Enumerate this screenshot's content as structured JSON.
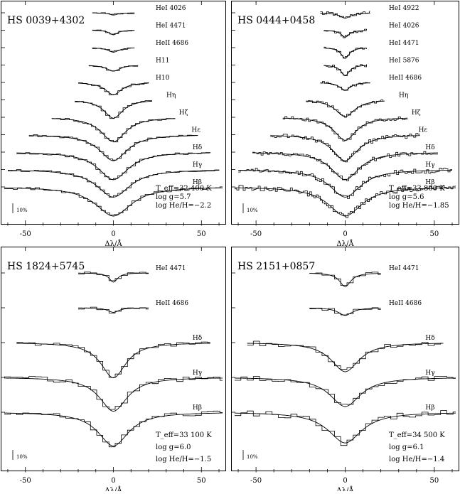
{
  "chart_data": [
    {
      "type": "line",
      "title": "HS 0039+4302",
      "xlabel": "Δλ/Å",
      "xlim": [
        -62,
        62
      ],
      "x_ticks": [
        "-50",
        "0",
        "50"
      ],
      "scale_bar": "10%",
      "params": [
        "T_eff=32 400 K",
        "log g=5.7",
        "log He/H=−2.2"
      ],
      "lines": [
        {
          "label": "HeI 4026",
          "halfwidth": 12,
          "depth": 0.15,
          "width": 3,
          "noise": 0.18
        },
        {
          "label": "HeI 4471",
          "halfwidth": 12,
          "depth": 0.3,
          "width": 3,
          "noise": 0.18
        },
        {
          "label": "HeII 4686",
          "halfwidth": 12,
          "depth": 0.3,
          "width": 4,
          "noise": 0.15
        },
        {
          "label": "H11",
          "halfwidth": 14,
          "depth": 0.4,
          "width": 5,
          "noise": 0.15
        },
        {
          "label": "H10",
          "halfwidth": 20,
          "depth": 0.8,
          "width": 6,
          "noise": 0.2
        },
        {
          "label": "Hη",
          "halfwidth": 22,
          "depth": 1.2,
          "width": 7,
          "noise": 0.2
        },
        {
          "label": "Hζ",
          "halfwidth": 35,
          "depth": 1.6,
          "width": 9,
          "noise": 0.2
        },
        {
          "label": "Hε",
          "halfwidth": 48,
          "depth": 1.7,
          "width": 10,
          "noise": 0.2
        },
        {
          "label": "Hδ",
          "halfwidth": 55,
          "depth": 1.8,
          "width": 11,
          "noise": 0.22
        },
        {
          "label": "Hγ",
          "halfwidth": 60,
          "depth": 1.8,
          "width": 12,
          "noise": 0.22
        },
        {
          "label": "Hβ",
          "halfwidth": 62,
          "depth": 1.9,
          "width": 13,
          "noise": 0.25
        }
      ]
    },
    {
      "type": "line",
      "title": "HS 0444+0458",
      "xlabel": "Δλ/Å",
      "xlim": [
        -62,
        62
      ],
      "x_ticks": [
        "-50",
        "0",
        "50"
      ],
      "scale_bar": "10%",
      "params": [
        "T_eff=33 800 K",
        "log g=5.6",
        "log He/H=−1.85"
      ],
      "lines": [
        {
          "label": "HeI 4922",
          "halfwidth": 14,
          "depth": 0.35,
          "width": 4,
          "noise": 0.35
        },
        {
          "label": "HeI 4026",
          "halfwidth": 12,
          "depth": 0.45,
          "width": 3,
          "noise": 0.3
        },
        {
          "label": "HeI 4471",
          "halfwidth": 12,
          "depth": 0.7,
          "width": 3,
          "noise": 0.3
        },
        {
          "label": "HeI 5876",
          "halfwidth": 12,
          "depth": 0.7,
          "width": 3,
          "noise": 0.35
        },
        {
          "label": "HeII 4686",
          "halfwidth": 14,
          "depth": 0.5,
          "width": 4,
          "noise": 0.3
        },
        {
          "label": "Hη",
          "halfwidth": 22,
          "depth": 1.1,
          "width": 7,
          "noise": 0.35
        },
        {
          "label": "Hζ",
          "halfwidth": 35,
          "depth": 1.5,
          "width": 8,
          "noise": 0.4
        },
        {
          "label": "Hε",
          "halfwidth": 42,
          "depth": 1.7,
          "width": 9,
          "noise": 0.45
        },
        {
          "label": "Hδ",
          "halfwidth": 52,
          "depth": 1.8,
          "width": 10,
          "noise": 0.45
        },
        {
          "label": "Hγ",
          "halfwidth": 60,
          "depth": 1.8,
          "width": 11,
          "noise": 0.5
        },
        {
          "label": "Hβ",
          "halfwidth": 62,
          "depth": 1.9,
          "width": 12,
          "noise": 0.5
        }
      ]
    },
    {
      "type": "line",
      "title": "HS 1824+5745",
      "xlabel": "Δλ/Å",
      "xlim": [
        -62,
        62
      ],
      "x_ticks": [
        "-50",
        "0",
        "50"
      ],
      "scale_bar": "10%",
      "params": [
        "T_eff=33 100 K",
        "log g=6.0",
        "log He/H=−1.5"
      ],
      "lines": [
        {
          "label": "HeI 4471",
          "halfwidth": 20,
          "depth": 0.6,
          "width": 3,
          "noise": 0.25
        },
        {
          "label": "HeII 4686",
          "halfwidth": 20,
          "depth": 0.3,
          "width": 4,
          "noise": 0.25
        },
        {
          "label": "Hδ",
          "halfwidth": 55,
          "depth": 2.3,
          "width": 9,
          "noise": 0.35
        },
        {
          "label": "Hγ",
          "halfwidth": 62,
          "depth": 2.2,
          "width": 10,
          "noise": 0.45
        },
        {
          "label": "Hβ",
          "halfwidth": 62,
          "depth": 2.2,
          "width": 11,
          "noise": 0.45
        }
      ]
    },
    {
      "type": "line",
      "title": "HS 2151+0857",
      "xlabel": "Δλ/Å",
      "xlim": [
        -62,
        62
      ],
      "x_ticks": [
        "-50",
        "0",
        "50"
      ],
      "scale_bar": "10%",
      "params": [
        "T_eff=34 500 K",
        "log g=6.1",
        "log He/H=−1.4"
      ],
      "lines": [
        {
          "label": "HeI 4471",
          "halfwidth": 20,
          "depth": 0.9,
          "width": 4,
          "noise": 0.3
        },
        {
          "label": "HeII 4686",
          "halfwidth": 20,
          "depth": 0.5,
          "width": 5,
          "noise": 0.3
        },
        {
          "label": "Hδ",
          "halfwidth": 55,
          "depth": 1.9,
          "width": 10,
          "noise": 0.45
        },
        {
          "label": "Hγ",
          "halfwidth": 62,
          "depth": 1.9,
          "width": 11,
          "noise": 0.5
        },
        {
          "label": "Hβ",
          "halfwidth": 62,
          "depth": 2.0,
          "width": 12,
          "noise": 0.55
        }
      ]
    }
  ]
}
